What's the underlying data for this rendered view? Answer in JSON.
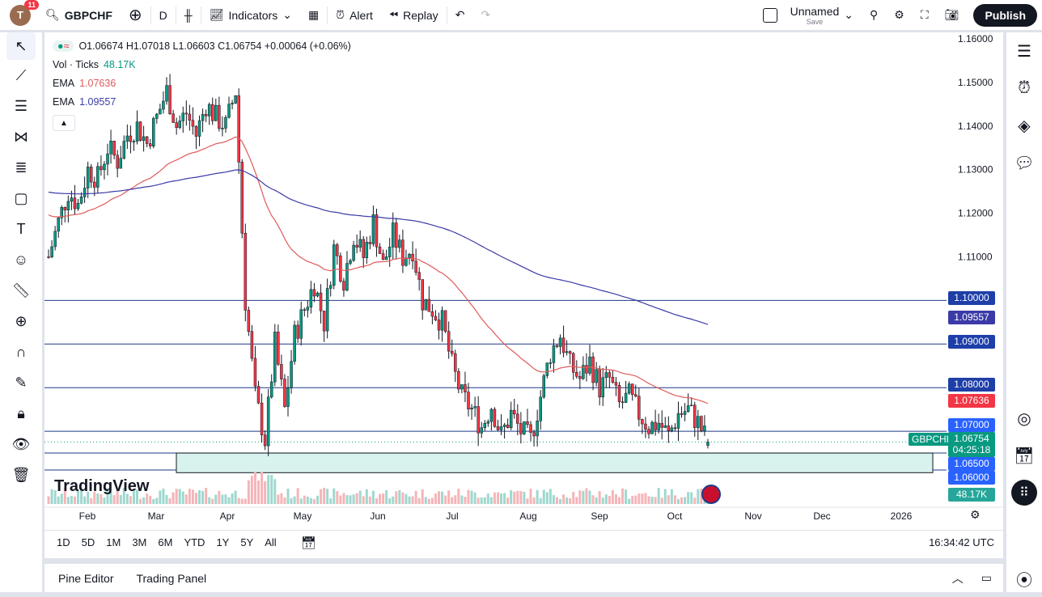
{
  "topbar": {
    "avatar_letter": "T",
    "notifications": "11",
    "symbol": "GBPCHF",
    "interval": "D",
    "indicators": "Indicators",
    "alert": "Alert",
    "replay": "Replay",
    "layout_name": "Unnamed",
    "layout_sub": "Save",
    "publish": "Publish"
  },
  "legend": {
    "ohlc": "O1.06674  H1.07018  L1.06603  C1.06754  +0.00064 (+0.06%)",
    "vol_label": "Vol · Ticks",
    "vol_value": "48.17K",
    "ema1_label": "EMA",
    "ema1_value": "1.07636",
    "ema2_label": "EMA",
    "ema2_value": "1.09557"
  },
  "colors": {
    "up": "#089981",
    "down": "#f23645",
    "ema_fast": "#e05a5a",
    "ema_slow": "#3b3ba8",
    "hline": "#1e3a8a",
    "zone": "#d8f2ee",
    "label_blue": "#2962ff"
  },
  "price_axis": {
    "ticks": [
      "1.16000",
      "1.15000",
      "1.14000",
      "1.13000",
      "1.12000",
      "1.11000",
      "1.10000",
      "1.09000",
      "1.08000",
      "1.07000",
      "1.06500",
      "1.06000"
    ],
    "min": 1.06,
    "max": 1.16
  },
  "price_labels": {
    "h1": "1.10000",
    "ema_slow": "1.09557",
    "h2": "1.09000",
    "h3": "1.08000",
    "ema_fast": "1.07636",
    "h4": "1.07000",
    "symbol_tag": "GBPCHF",
    "last": "1.06754",
    "countdown": "04:25:18",
    "h5": "1.06500",
    "h6": "1.06000",
    "volume": "48.17K"
  },
  "horizontal_levels": [
    1.1,
    1.09,
    1.08,
    1.07,
    1.065,
    1.06
  ],
  "support_zone": [
    1.0605,
    1.065
  ],
  "time_axis": [
    "Feb",
    "Mar",
    "Apr",
    "May",
    "Jun",
    "Jul",
    "Aug",
    "Sep",
    "Oct",
    "Nov",
    "Dec",
    "2026"
  ],
  "price_path": [
    1.11,
    1.118,
    1.125,
    1.122,
    1.13,
    1.128,
    1.135,
    1.132,
    1.138,
    1.14,
    1.136,
    1.142,
    1.148,
    1.14,
    1.143,
    1.138,
    1.145,
    1.142,
    1.14,
    1.148,
    1.1,
    1.078,
    1.068,
    1.09,
    1.075,
    1.092,
    1.098,
    1.104,
    1.095,
    1.112,
    1.105,
    1.115,
    1.11,
    1.118,
    1.108,
    1.115,
    1.11,
    1.112,
    1.1,
    1.098,
    1.095,
    1.085,
    1.078,
    1.075,
    1.071,
    1.076,
    1.069,
    1.074,
    1.07,
    1.068,
    1.078,
    1.088,
    1.092,
    1.085,
    1.082,
    1.086,
    1.08,
    1.082,
    1.076,
    1.078,
    1.074,
    1.071,
    1.072,
    1.069,
    1.074,
    1.075,
    1.072,
    1.0675
  ],
  "brand": "TradingView",
  "range_buttons": [
    "1D",
    "5D",
    "1M",
    "3M",
    "6M",
    "YTD",
    "1Y",
    "5Y",
    "All"
  ],
  "clock": "16:34:42 UTC",
  "bottom": {
    "pine": "Pine Editor",
    "panel": "Trading Panel"
  }
}
